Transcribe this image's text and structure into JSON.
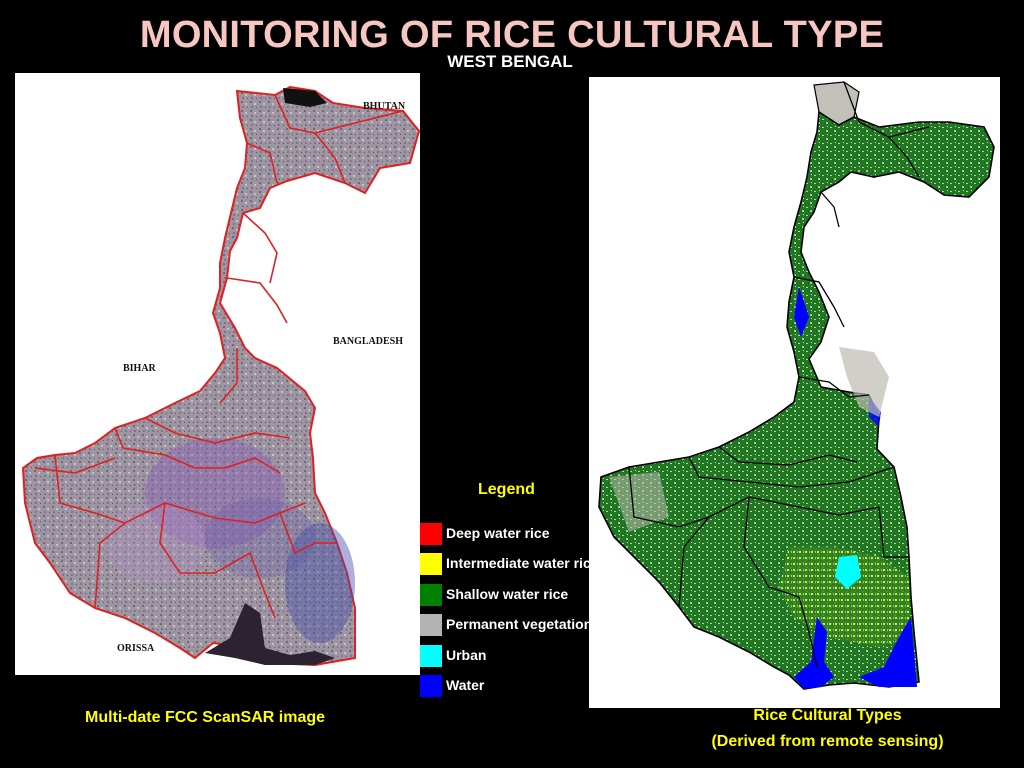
{
  "title": "MONITORING OF RICE CULTURAL TYPE",
  "subtitle": "WEST BENGAL",
  "left_map": {
    "labels": {
      "bhutan": "BHUTAN",
      "bangladesh": "BANGLADESH",
      "bihar": "BIHAR",
      "orissa": "ORISSA"
    },
    "caption": "Multi-date FCC ScanSAR image"
  },
  "right_map": {
    "caption_line1": "Rice Cultural Types",
    "caption_line2": "(Derived from remote sensing)"
  },
  "legend": {
    "title": "Legend",
    "items": [
      {
        "label": "Deep water rice",
        "color": "#ff0000"
      },
      {
        "label": "Intermediate water rice",
        "color": "#ffff00"
      },
      {
        "label": "Shallow water rice",
        "color": "#008000"
      },
      {
        "label": "Permanent vegetation",
        "color": "#b3b3b3"
      },
      {
        "label": "Urban",
        "color": "#00ffff"
      },
      {
        "label": "Water",
        "color": "#0000ff"
      }
    ]
  },
  "colors": {
    "title": "#f7c6c0",
    "caption": "#ffff00",
    "district_border_left": "#e02020",
    "district_border_right": "#000000"
  }
}
